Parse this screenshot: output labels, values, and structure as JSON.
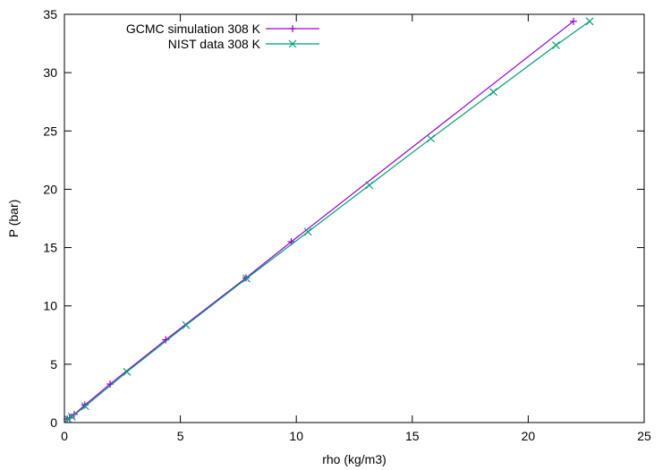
{
  "chart_data": {
    "type": "line",
    "title": "",
    "xlabel": "rho (kg/m3)",
    "ylabel": "P (bar)",
    "xlim": [
      0,
      25
    ],
    "ylim": [
      0,
      35
    ],
    "xticks": [
      0,
      5,
      10,
      15,
      20,
      25
    ],
    "yticks": [
      0,
      5,
      10,
      15,
      20,
      25,
      30,
      35
    ],
    "grid": false,
    "legend_position": "top-left",
    "series": [
      {
        "name": "GCMC simulation 308 K",
        "color": "#9400d3",
        "marker": "plus",
        "x": [
          0.12,
          0.22,
          0.42,
          0.88,
          1.97,
          4.37,
          7.83,
          9.78,
          21.95
        ],
        "y": [
          0.3,
          0.4,
          0.7,
          1.5,
          3.3,
          7.1,
          12.4,
          15.5,
          34.4
        ]
      },
      {
        "name": "NIST data 308 K",
        "color": "#009e73",
        "marker": "cross",
        "x": [
          0.14,
          0.32,
          0.9,
          2.7,
          5.25,
          7.85,
          10.5,
          13.15,
          15.8,
          18.5,
          21.2,
          22.65
        ],
        "y": [
          0.3,
          0.5,
          1.4,
          4.35,
          8.35,
          12.35,
          16.35,
          20.35,
          24.35,
          28.35,
          32.35,
          34.4
        ]
      }
    ]
  }
}
